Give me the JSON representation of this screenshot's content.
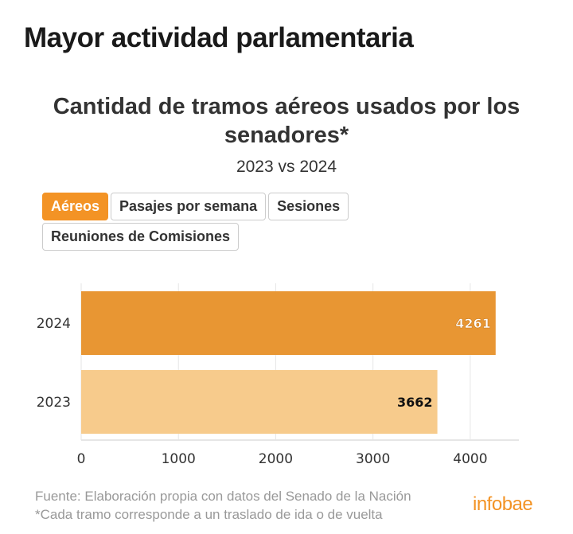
{
  "header": {
    "title": "Mayor actividad parlamentaria"
  },
  "tabs": [
    {
      "label": "Aéreos",
      "active": true
    },
    {
      "label": "Pasajes por semana",
      "active": false
    },
    {
      "label": "Sesiones",
      "active": false
    },
    {
      "label": "Reuniones de Comisiones",
      "active": false
    }
  ],
  "chart_data": {
    "type": "bar",
    "orientation": "horizontal",
    "title": "Cantidad de tramos aéreos usados por los senadores*",
    "subtitle": "2023 vs 2024",
    "categories": [
      "2024",
      "2023"
    ],
    "values": [
      4261,
      3662
    ],
    "value_labels": [
      "4261",
      "3662"
    ],
    "colors": [
      "#e89633",
      "#f7cb8c"
    ],
    "xlim": [
      0,
      4500
    ],
    "xticks": [
      "0",
      "1000",
      "2000",
      "3000",
      "4000"
    ],
    "grid": true
  },
  "footer": {
    "source": "Fuente: Elaboración propia con datos del Senado de la Nación",
    "note": "*Cada tramo corresponde a un traslado de ida o de vuelta",
    "logo": "infobae"
  }
}
